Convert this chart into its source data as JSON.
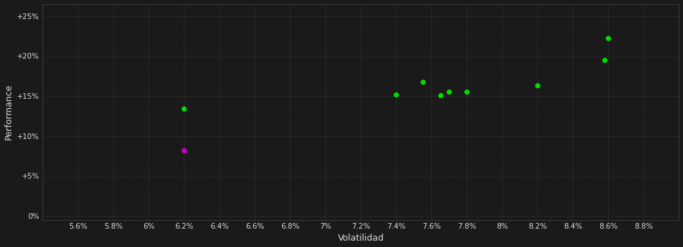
{
  "background_color": "#1a1a1a",
  "grid_color": "#444444",
  "text_color": "#dddddd",
  "xlabel": "Volatilidad",
  "ylabel": "Performance",
  "xlim": [
    0.054,
    0.09
  ],
  "ylim": [
    -0.005,
    0.265
  ],
  "xticks": [
    0.056,
    0.058,
    0.06,
    0.062,
    0.064,
    0.066,
    0.068,
    0.07,
    0.072,
    0.074,
    0.076,
    0.078,
    0.08,
    0.082,
    0.084,
    0.086,
    0.088
  ],
  "yticks": [
    0.0,
    0.05,
    0.1,
    0.15,
    0.2,
    0.25
  ],
  "ytick_labels": [
    "0%",
    "+5%",
    "+10%",
    "+15%",
    "+20%",
    "+25%"
  ],
  "xtick_labels": [
    "5.6%",
    "5.8%",
    "6%",
    "6.2%",
    "6.4%",
    "6.6%",
    "6.8%",
    "7%",
    "7.2%",
    "7.4%",
    "7.6%",
    "7.8%",
    "8%",
    "8.2%",
    "8.4%",
    "8.6%",
    "8.8%"
  ],
  "green_points": [
    [
      0.062,
      0.134
    ],
    [
      0.074,
      0.152
    ],
    [
      0.0755,
      0.168
    ],
    [
      0.077,
      0.155
    ],
    [
      0.0765,
      0.151
    ],
    [
      0.078,
      0.155
    ],
    [
      0.082,
      0.163
    ],
    [
      0.0858,
      0.195
    ],
    [
      0.086,
      0.222
    ]
  ],
  "magenta_points": [
    [
      0.062,
      0.082
    ]
  ],
  "point_size": 28,
  "green_color": "#00dd00",
  "magenta_color": "#cc00cc"
}
